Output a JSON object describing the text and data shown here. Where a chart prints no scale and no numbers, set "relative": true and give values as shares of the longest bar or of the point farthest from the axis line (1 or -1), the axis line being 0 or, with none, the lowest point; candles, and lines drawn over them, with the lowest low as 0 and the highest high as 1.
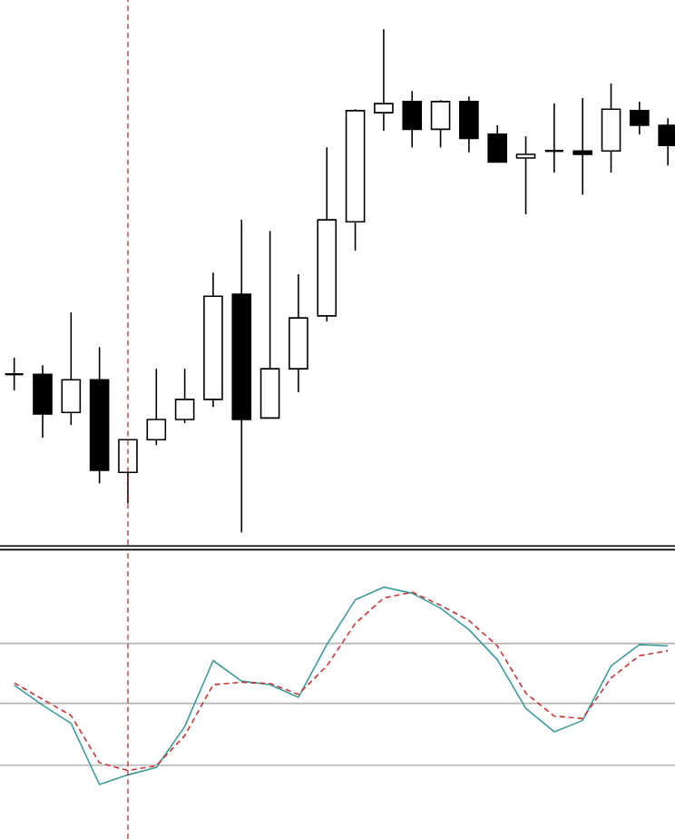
{
  "chart_data": [
    {
      "type": "candlestick",
      "relative": true,
      "categories": [
        null,
        null,
        null,
        null,
        null,
        null,
        null,
        null,
        null,
        null,
        null,
        null,
        null,
        null,
        null,
        null,
        null,
        null,
        null,
        null,
        null,
        null,
        null,
        null
      ],
      "ohlc": [
        [
          0.314,
          0.347,
          0.282,
          0.314
        ],
        [
          0.314,
          0.332,
          0.188,
          0.235
        ],
        [
          0.238,
          0.437,
          0.213,
          0.303
        ],
        [
          0.303,
          0.368,
          0.097,
          0.123
        ],
        [
          0.119,
          0.184,
          0.058,
          0.184
        ],
        [
          0.184,
          0.325,
          0.173,
          0.224
        ],
        [
          0.224,
          0.325,
          0.217,
          0.264
        ],
        [
          0.264,
          0.516,
          0.249,
          0.469
        ],
        [
          0.473,
          0.621,
          0.0,
          0.224
        ],
        [
          0.227,
          0.599,
          0.227,
          0.325
        ],
        [
          0.325,
          0.513,
          0.278,
          0.426
        ],
        [
          0.43,
          0.765,
          0.419,
          0.621
        ],
        [
          0.617,
          0.841,
          0.56,
          0.838
        ],
        [
          0.834,
          1.0,
          0.798,
          0.852
        ],
        [
          0.856,
          0.877,
          0.765,
          0.801
        ],
        [
          0.801,
          0.859,
          0.765,
          0.856
        ],
        [
          0.856,
          0.866,
          0.755,
          0.783
        ],
        [
          0.791,
          0.809,
          0.736,
          0.736
        ],
        [
          0.744,
          0.787,
          0.632,
          0.751
        ],
        [
          0.758,
          0.852,
          0.715,
          0.758
        ],
        [
          0.758,
          0.863,
          0.671,
          0.751
        ],
        [
          0.758,
          0.892,
          0.715,
          0.841
        ],
        [
          0.838,
          0.856,
          0.791,
          0.809
        ],
        [
          0.809,
          0.823,
          0.729,
          0.769
        ]
      ]
    },
    {
      "type": "line",
      "relative": true,
      "categories": [
        null,
        null,
        null,
        null,
        null,
        null,
        null,
        null,
        null,
        null,
        null,
        null,
        null,
        null,
        null,
        null,
        null,
        null,
        null,
        null,
        null,
        null,
        null,
        null
      ],
      "series": [
        {
          "color": "#3d9b9b",
          "line_style": "solid",
          "values": [
            0.503,
            0.402,
            0.31,
            0.0,
            0.049,
            0.086,
            0.294,
            0.628,
            0.524,
            0.506,
            0.442,
            0.709,
            0.936,
            1.0,
            0.969,
            0.893,
            0.785,
            0.632,
            0.386,
            0.267,
            0.325,
            0.601,
            0.709,
            0.703
          ]
        },
        {
          "color": "#cc3333",
          "line_style": "dashed",
          "values": [
            0.515,
            0.432,
            0.35,
            0.11,
            0.071,
            0.095,
            0.248,
            0.506,
            0.518,
            0.512,
            0.457,
            0.601,
            0.816,
            0.945,
            0.975,
            0.908,
            0.831,
            0.702,
            0.463,
            0.347,
            0.334,
            0.54,
            0.653,
            0.678
          ]
        }
      ],
      "ref_lines": [
        {
          "axis": "y",
          "value": 0.715,
          "color": "#b4b4b4"
        },
        {
          "axis": "y",
          "value": 0.411,
          "color": "#b4b4b4"
        },
        {
          "axis": "y",
          "value": 0.098,
          "color": "#b4b4b4"
        }
      ]
    }
  ]
}
